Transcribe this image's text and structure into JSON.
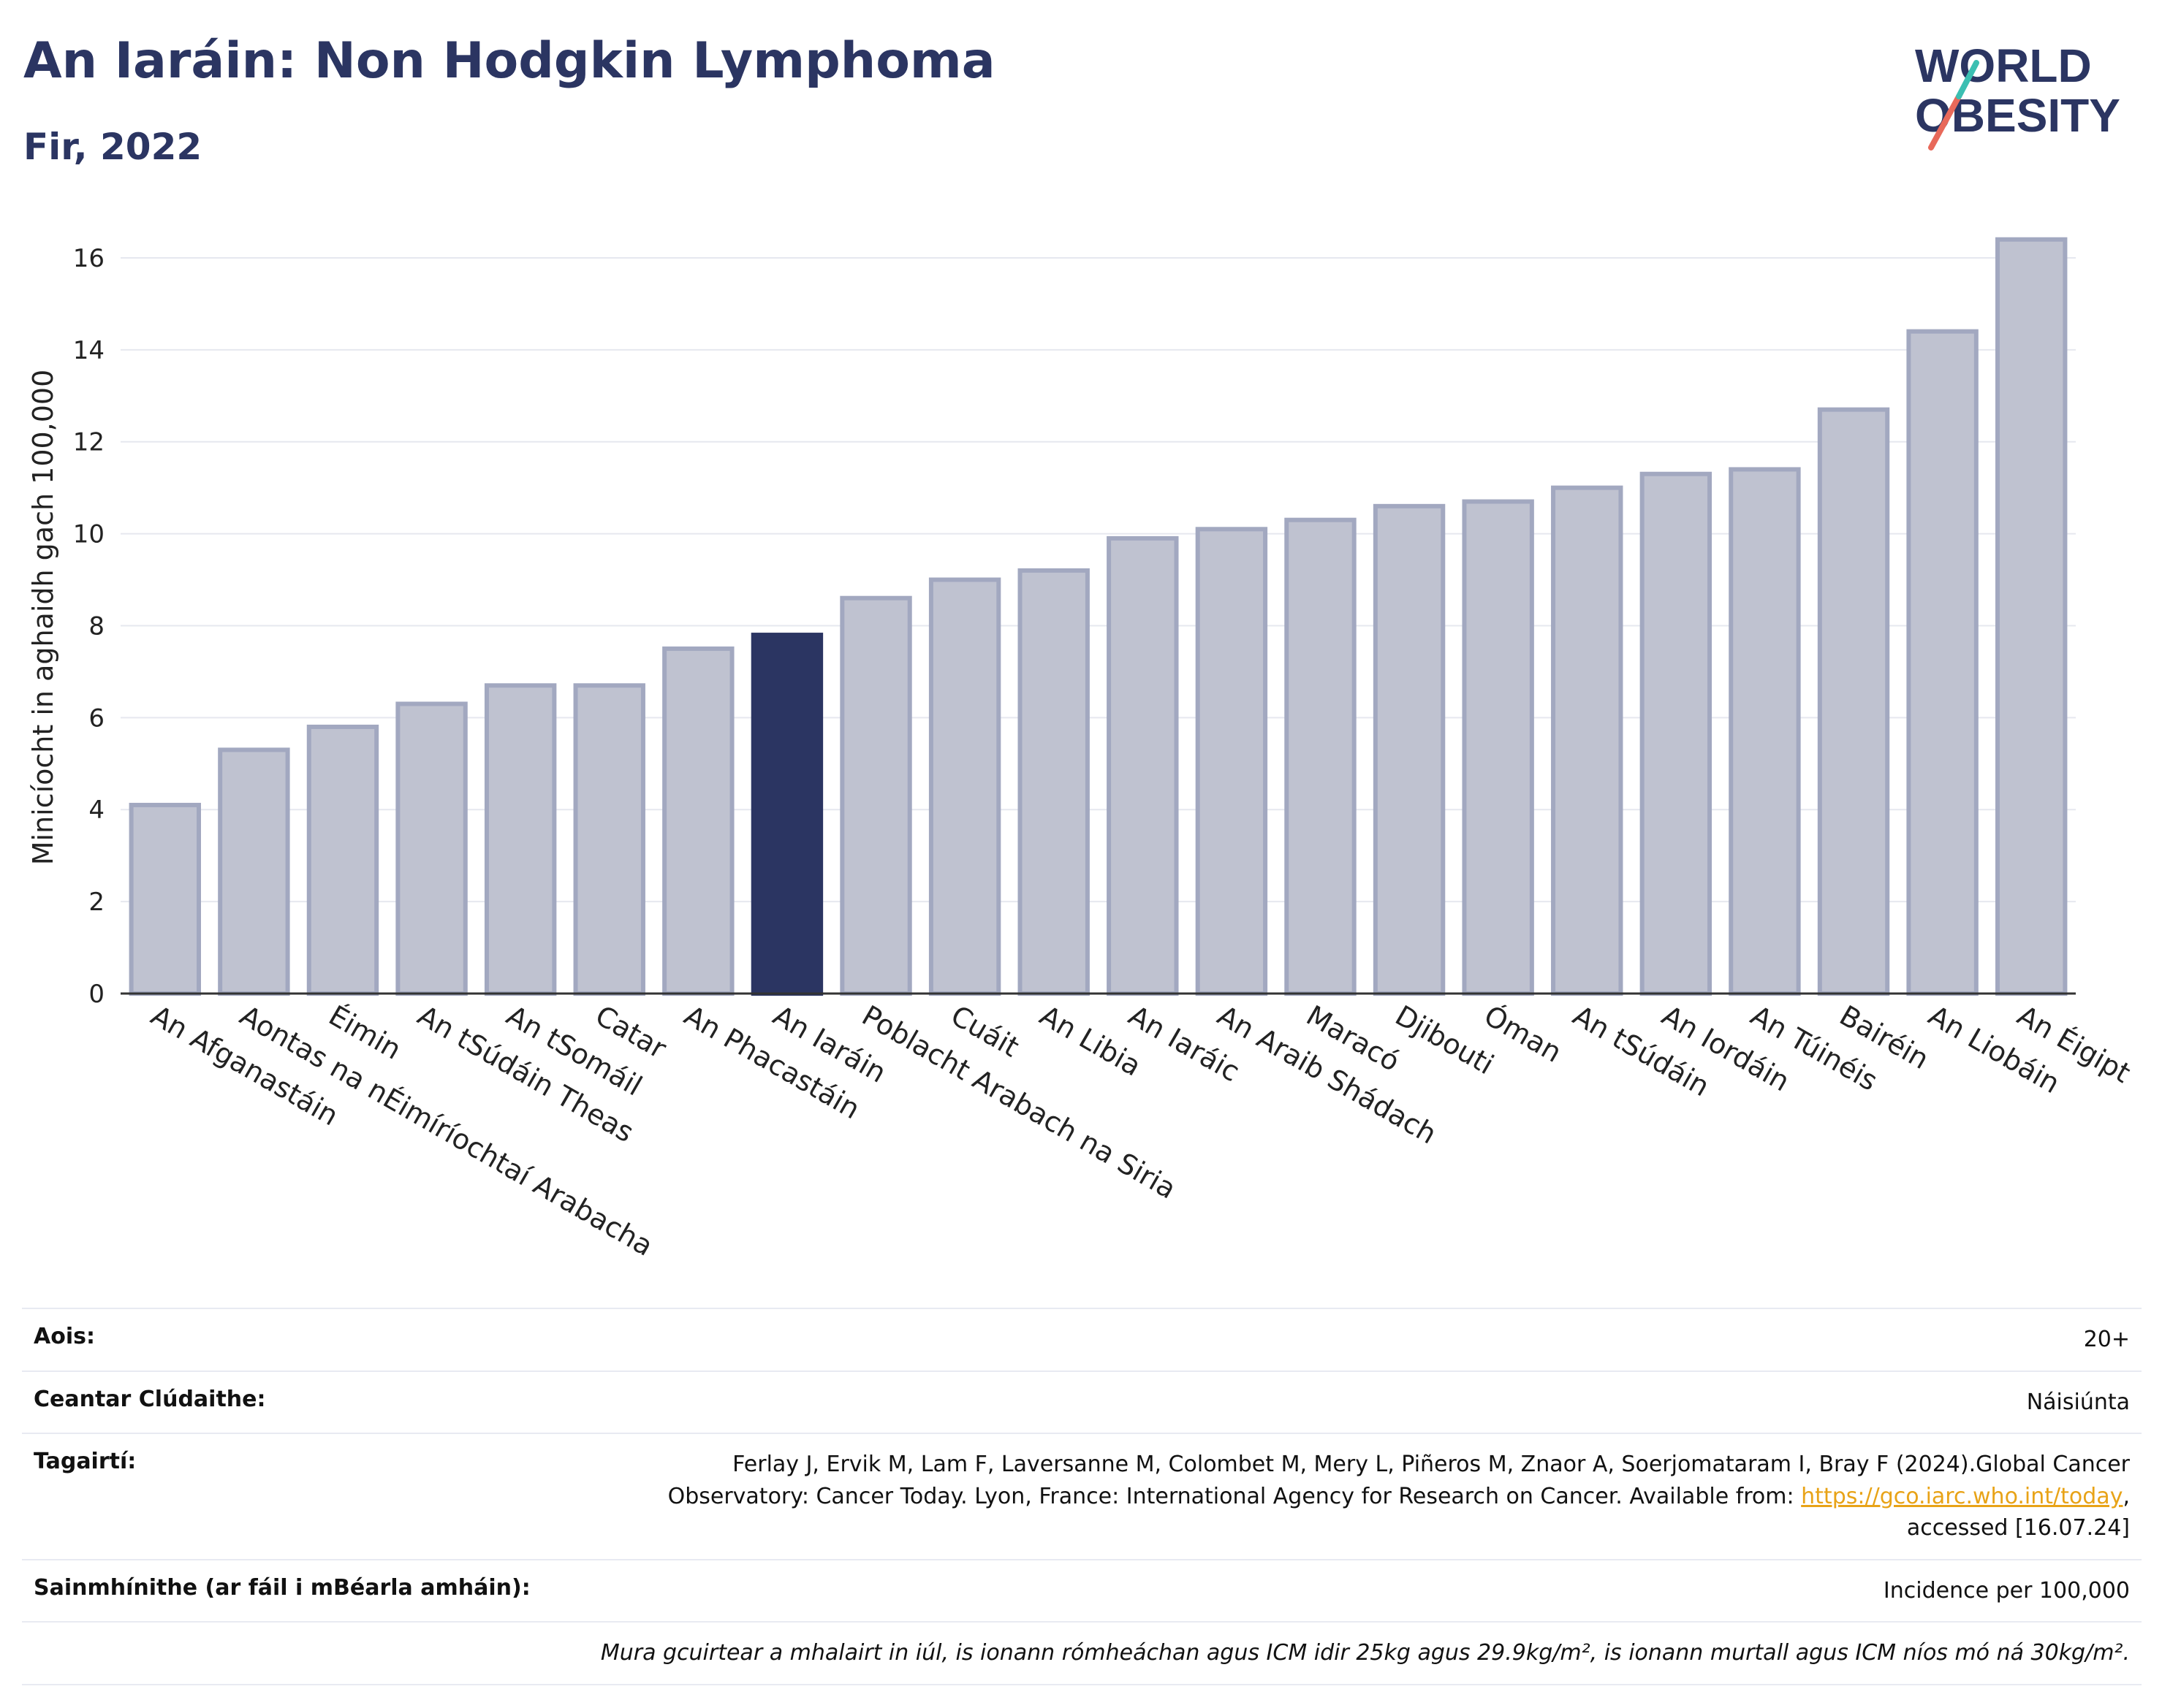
{
  "header": {
    "title": "An Iaráin: Non Hodgkin Lymphoma",
    "subtitle": "Fir, 2022"
  },
  "logo": {
    "line1": "WORLD",
    "line2": "OBESITY",
    "colors": {
      "text": "#2b3562",
      "slash_red": "#e8695a",
      "slash_teal": "#3bbfb2"
    }
  },
  "chart_data": {
    "type": "bar",
    "title": "An Iaráin: Non Hodgkin Lymphoma",
    "subtitle": "Fir, 2022",
    "xlabel": "",
    "ylabel": "Minicíocht in aghaidh gach 100,000",
    "ylim": [
      0,
      17
    ],
    "yticks": [
      0,
      2,
      4,
      6,
      8,
      10,
      12,
      14,
      16
    ],
    "grid": true,
    "highlight": "An Iaráin",
    "colors": {
      "bar": "#bfc2d0",
      "bar_border": "#a2a8c0",
      "highlight": "#2b3562",
      "grid": "#e6e8ef",
      "axis": "#333333"
    },
    "categories": [
      "An Afganastáin",
      "Aontas na nÉimíríochtaí Arabacha",
      "Éimin",
      "An tSúdáin Theas",
      "An tSomáil",
      "Catar",
      "An Phacastáin",
      "An Iaráin",
      "Poblacht Arabach na Siria",
      "Cuáit",
      "An Libia",
      "An Iaráic",
      "An Araib Shádach",
      "Maracó",
      "Djibouti",
      "Óman",
      "An tSúdáin",
      "An Iordáin",
      "An Túinéis",
      "Bairéin",
      "An Liobáin",
      "An Éigipt"
    ],
    "values": [
      4.1,
      5.3,
      5.8,
      6.3,
      6.7,
      6.7,
      7.5,
      7.8,
      8.6,
      9.0,
      9.2,
      9.9,
      10.1,
      10.3,
      10.6,
      10.7,
      11.0,
      11.3,
      11.4,
      12.7,
      14.4,
      16.4
    ]
  },
  "info": {
    "age_label": "Aois:",
    "age_value": "20+",
    "coverage_label": "Ceantar Clúdaithe:",
    "coverage_value": "Náisiúnta",
    "references_label": "Tagairtí:",
    "references_text_1": "Ferlay J, Ervik M, Lam F, Laversanne M, Colombet M, Mery L, Piñeros M, Znaor A, Soerjomataram I, Bray F (2024).Global Cancer Observatory: Cancer Today. Lyon, France: International Agency for Research on Cancer. Available from: ",
    "references_link": "https://gco.iarc.who.int/today",
    "references_text_2": ", accessed [16.07.24]",
    "definitions_label": "Sainmhínithe (ar fáil i mBéarla amháin):",
    "definitions_value": "Incidence per 100,000",
    "note": "Mura gcuirtear a mhalairt in iúl, is ionann rómheáchan agus ICM idir 25kg agus 29.9kg/m², is ionann murtall agus ICM níos mó ná 30kg/m²."
  }
}
